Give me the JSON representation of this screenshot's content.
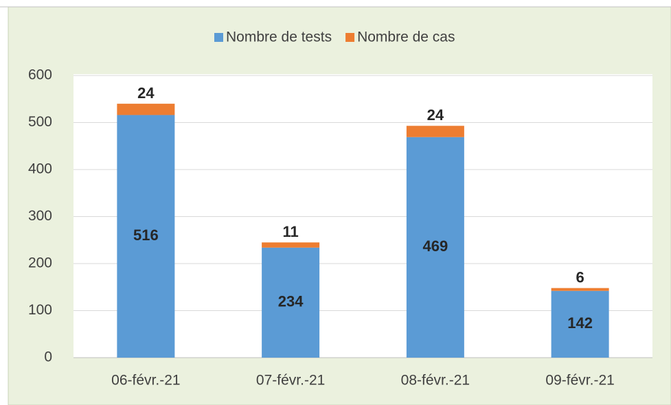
{
  "chart_data": {
    "type": "stacked_bar",
    "categories": [
      "06-févr.-21",
      "07-févr.-21",
      "08-févr.-21",
      "09-févr.-21"
    ],
    "series": [
      {
        "name": "Nombre de tests",
        "color": "#5b9bd5",
        "values": [
          516,
          234,
          469,
          142
        ]
      },
      {
        "name": "Nombre de cas",
        "color": "#ed7d31",
        "values": [
          24,
          11,
          24,
          6
        ]
      }
    ],
    "ylim": [
      0,
      600
    ],
    "yticks": [
      0,
      100,
      200,
      300,
      400,
      500,
      600
    ],
    "grid": true,
    "legend": "top"
  }
}
